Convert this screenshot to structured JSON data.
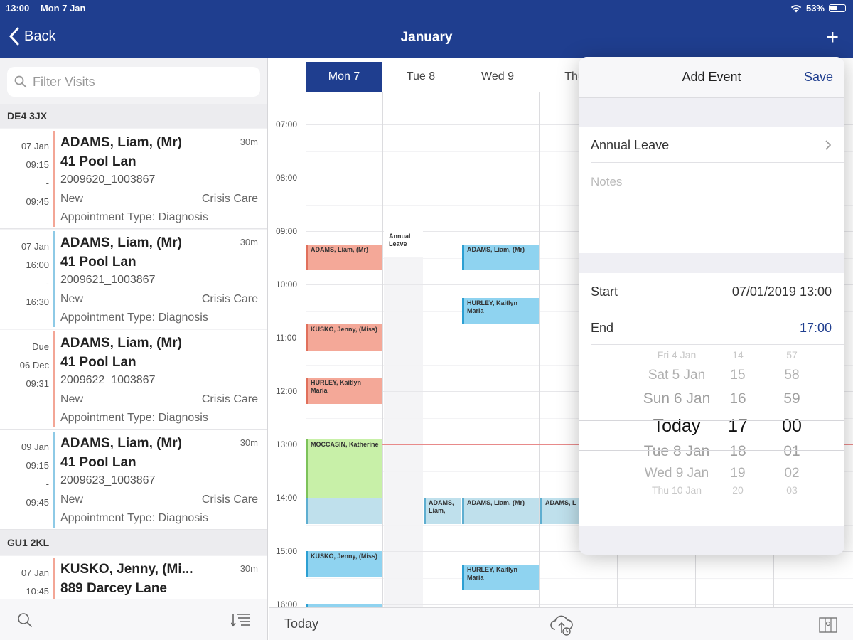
{
  "status_bar": {
    "time": "13:00",
    "date": "Mon 7 Jan",
    "battery": "53%"
  },
  "header": {
    "back_label": "Back",
    "title": "January",
    "add_label": "+"
  },
  "sidebar": {
    "search_placeholder": "Filter Visits",
    "groups": [
      {
        "postcode": "DE4 3JX"
      },
      {
        "postcode": "GU1 2KL"
      }
    ],
    "visits": [
      {
        "time1": "07 Jan",
        "time2": "09:15",
        "time3": "-",
        "time4": "09:45",
        "name": "ADAMS, Liam, (Mr)",
        "duration": "30m",
        "address": "41 Pool Lan",
        "ref": "2009620_1003867",
        "status": "New",
        "care": "Crisis Care",
        "appointment": "Appointment Type: Diagnosis",
        "color": "#f3a696"
      },
      {
        "time1": "07 Jan",
        "time2": "16:00",
        "time3": "-",
        "time4": "16:30",
        "name": "ADAMS, Liam, (Mr)",
        "duration": "30m",
        "address": "41 Pool Lan",
        "ref": "2009621_1003867",
        "status": "New",
        "care": "Crisis Care",
        "appointment": "Appointment Type: Diagnosis",
        "color": "#8ecae6"
      },
      {
        "time1": "Due",
        "time2": "06 Dec",
        "time3": "09:31",
        "time4": "",
        "name": "ADAMS, Liam, (Mr)",
        "duration": "",
        "address": "41 Pool Lan",
        "ref": "2009622_1003867",
        "status": "New",
        "care": "Crisis Care",
        "appointment": "Appointment Type: Diagnosis",
        "color": "#f3a696"
      },
      {
        "time1": "09 Jan",
        "time2": "09:15",
        "time3": "-",
        "time4": "09:45",
        "name": "ADAMS, Liam, (Mr)",
        "duration": "30m",
        "address": "41 Pool Lan",
        "ref": "2009623_1003867",
        "status": "New",
        "care": "Crisis Care",
        "appointment": "Appointment Type: Diagnosis",
        "color": "#8ecae6"
      },
      {
        "time1": "07 Jan",
        "time2": "10:45",
        "time3": "",
        "time4": "",
        "name": "KUSKO, Jenny, (Mi...",
        "duration": "30m",
        "address": "889 Darcey Lane",
        "ref": "",
        "status": "",
        "care": "",
        "appointment": "",
        "color": "#f3a696"
      }
    ]
  },
  "calendar": {
    "days": [
      "Mon 7",
      "Tue 8",
      "Wed 9",
      "Thu"
    ],
    "hours": [
      "07:00",
      "08:00",
      "09:00",
      "10:00",
      "11:00",
      "12:00",
      "13:00",
      "14:00",
      "15:00",
      "16:00"
    ],
    "events": [
      {
        "col": 0,
        "start": 9.25,
        "end": 9.75,
        "text": "ADAMS, Liam, (Mr)",
        "color": "#f4a898",
        "border": "#e0705c"
      },
      {
        "col": 0,
        "start": 10.75,
        "end": 11.25,
        "text": "KUSKO, Jenny, (Miss)",
        "color": "#f4a898",
        "border": "#e0705c"
      },
      {
        "col": 0,
        "start": 11.75,
        "end": 12.25,
        "text": "HURLEY, Kaitlyn Maria",
        "color": "#f4a898",
        "border": "#e0705c"
      },
      {
        "col": 0,
        "start": 12.9,
        "end": 14.4,
        "text": "MOCCASIN, Katherine",
        "color": "#c8f0a8",
        "border": "#7cc25a"
      },
      {
        "col": 0,
        "start": 14.0,
        "end": 14.5,
        "text": "",
        "color": "#bfe0ec",
        "border": "#5eaed0"
      },
      {
        "col": 0,
        "start": 15.0,
        "end": 15.5,
        "text": "KUSKO, Jenny, (Miss)",
        "color": "#8fd3f0",
        "border": "#2c9fd2"
      },
      {
        "col": 0,
        "start": 16.0,
        "end": 16.5,
        "text": "ADAMS, Liam, (Mr)",
        "color": "#8fd3f0",
        "border": "#2c9fd2"
      },
      {
        "col": 1,
        "start": 9.0,
        "end": 9.5,
        "text": "Annual Leave",
        "color": "#ffffff",
        "border": "#ffffff"
      },
      {
        "col": 1,
        "start": 14.0,
        "end": 14.5,
        "text": "ADAMS, Liam,",
        "color": "#bfe0ec",
        "border": "#5eaed0"
      },
      {
        "col": 2,
        "start": 9.25,
        "end": 9.75,
        "text": "ADAMS, Liam, (Mr)",
        "color": "#8fd3f0",
        "border": "#2c9fd2"
      },
      {
        "col": 2,
        "start": 10.25,
        "end": 10.75,
        "text": "HURLEY, Kaitlyn Maria",
        "color": "#8fd3f0",
        "border": "#2c9fd2"
      },
      {
        "col": 2,
        "start": 14.0,
        "end": 14.5,
        "text": "ADAMS, Liam, (Mr)",
        "color": "#bfe0ec",
        "border": "#5eaed0"
      },
      {
        "col": 2,
        "start": 15.25,
        "end": 15.75,
        "text": "HURLEY, Kaitlyn Maria",
        "color": "#8fd3f0",
        "border": "#2c9fd2"
      },
      {
        "col": 3,
        "start": 14.0,
        "end": 14.5,
        "text": "ADAMS, L",
        "color": "#bfe0ec",
        "border": "#5eaed0"
      }
    ],
    "today_label": "Today"
  },
  "popover": {
    "title": "Add Event",
    "save_label": "Save",
    "event_type": "Annual Leave",
    "notes_placeholder": "Notes",
    "start_label": "Start",
    "start_value": "07/01/2019 13:00",
    "end_label": "End",
    "end_value": "17:00",
    "picker": {
      "dates": [
        "Fri 4 Jan",
        "Sat 5 Jan",
        "Sun 6 Jan",
        "Today",
        "Tue 8 Jan",
        "Wed 9 Jan",
        "Thu 10 Jan"
      ],
      "hours": [
        "14",
        "15",
        "16",
        "17",
        "18",
        "19",
        "20"
      ],
      "minutes": [
        "57",
        "58",
        "59",
        "00",
        "01",
        "02",
        "03"
      ]
    },
    "accent_color": "#1f3e8f"
  }
}
